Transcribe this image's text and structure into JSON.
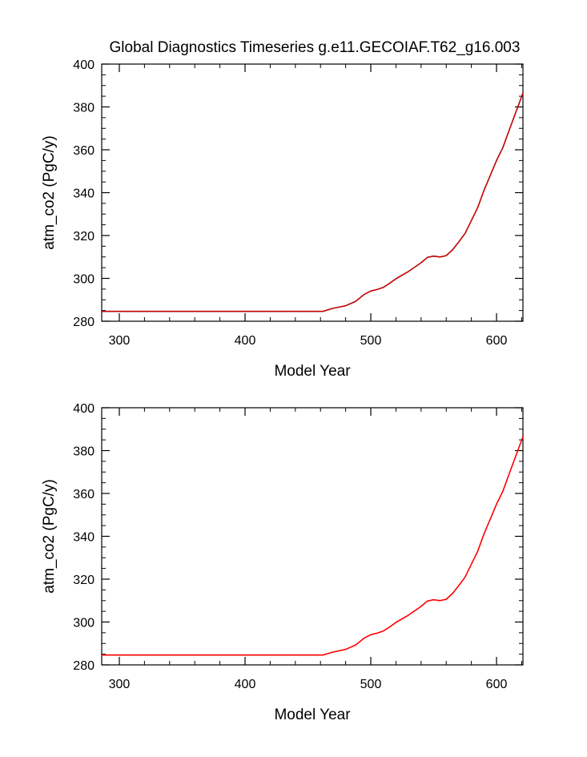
{
  "figure": {
    "title": "Global Diagnostics Timeseries g.e11.GECOIAF.T62_g16.003"
  },
  "chart_data": [
    {
      "type": "line",
      "title": "Global Diagnostics Timeseries g.e11.GECOIAF.T62_g16.003",
      "xlabel": "Model Year",
      "ylabel": "atm_co2 (PgC/y)",
      "xlim": [
        286,
        621
      ],
      "ylim": [
        280,
        400
      ],
      "xticks": [
        300,
        400,
        500,
        600
      ],
      "yticks": [
        280,
        300,
        320,
        340,
        360,
        380,
        400
      ],
      "grid": false,
      "legend": "none",
      "series": [
        {
          "color": "#8b0000",
          "overlay_color": "#ff0000",
          "x": [
            286,
            300,
            350,
            400,
            450,
            462,
            470,
            480,
            488,
            495,
            500,
            505,
            510,
            515,
            520,
            530,
            540,
            545,
            550,
            555,
            560,
            565,
            570,
            575,
            580,
            585,
            590,
            595,
            600,
            605,
            610,
            615,
            621
          ],
          "y": [
            284.6,
            284.6,
            284.6,
            284.6,
            284.6,
            284.6,
            286.0,
            287.2,
            289.3,
            292.6,
            294.1,
            294.8,
            295.8,
            297.7,
            299.8,
            303.2,
            307.3,
            309.8,
            310.4,
            310.0,
            310.6,
            313.3,
            317.0,
            321.0,
            327.0,
            333.0,
            341.0,
            348.0,
            355.0,
            361.0,
            369.0,
            377.0,
            386.5
          ]
        }
      ]
    },
    {
      "type": "line",
      "xlabel": "Model Year",
      "ylabel": "atm_co2 (PgC/y)",
      "xlim": [
        286,
        621
      ],
      "ylim": [
        280,
        400
      ],
      "xticks": [
        300,
        400,
        500,
        600
      ],
      "yticks": [
        280,
        300,
        320,
        340,
        360,
        380,
        400
      ],
      "grid": false,
      "legend": "none",
      "series": [
        {
          "color": "#ff0000",
          "x": [
            286,
            300,
            350,
            400,
            450,
            462,
            470,
            480,
            488,
            495,
            500,
            505,
            510,
            515,
            520,
            530,
            540,
            545,
            550,
            555,
            560,
            565,
            570,
            575,
            580,
            585,
            590,
            595,
            600,
            605,
            610,
            615,
            621
          ],
          "y": [
            284.6,
            284.6,
            284.6,
            284.6,
            284.6,
            284.6,
            286.0,
            287.2,
            289.3,
            292.6,
            294.1,
            294.8,
            295.8,
            297.7,
            299.8,
            303.2,
            307.3,
            309.8,
            310.4,
            310.0,
            310.6,
            313.3,
            317.0,
            321.0,
            327.0,
            333.0,
            341.0,
            348.0,
            355.0,
            361.0,
            369.0,
            377.0,
            386.5
          ]
        }
      ]
    }
  ]
}
